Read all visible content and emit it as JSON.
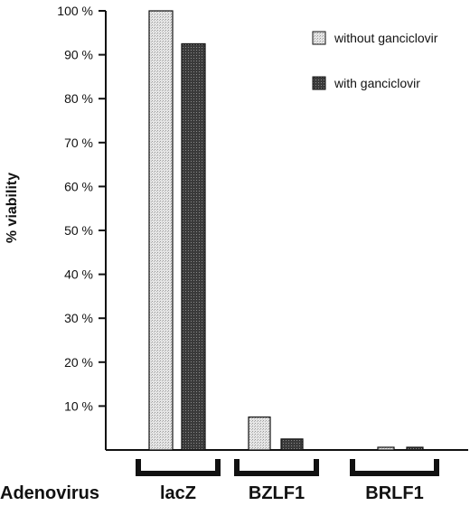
{
  "chart_data": {
    "type": "bar",
    "ylabel": "% viability",
    "xlabel": "Adenovirus",
    "ylim": [
      0,
      100
    ],
    "yticks": [
      {
        "value": 10,
        "label": "10 %"
      },
      {
        "value": 20,
        "label": "20 %"
      },
      {
        "value": 30,
        "label": "30 %"
      },
      {
        "value": 40,
        "label": "40 %"
      },
      {
        "value": 50,
        "label": "50 %"
      },
      {
        "value": 60,
        "label": "60 %"
      },
      {
        "value": 70,
        "label": "70 %"
      },
      {
        "value": 80,
        "label": "80 %"
      },
      {
        "value": 90,
        "label": "90 %"
      },
      {
        "value": 100,
        "label": "100 %"
      }
    ],
    "categories": [
      "lacZ",
      "BZLF1",
      "BRLF1"
    ],
    "series": [
      {
        "name": "without ganciclovir",
        "values": [
          100,
          7.5,
          0.5
        ],
        "color": "#d9d9d9"
      },
      {
        "name": "with ganciclovir",
        "values": [
          92.5,
          2.5,
          0.5
        ],
        "color": "#444444"
      }
    ],
    "legend": "top-right",
    "grid": false
  }
}
